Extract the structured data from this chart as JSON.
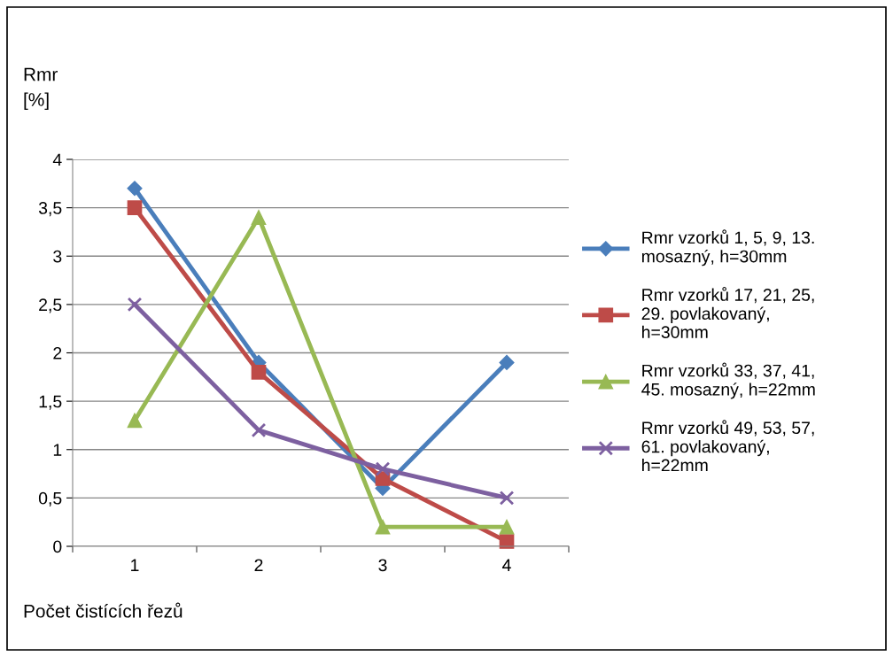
{
  "chart_data": {
    "type": "line",
    "ylabel": "Rmr\n[%]",
    "xlabel": "Počet čistících řezů",
    "categories": [
      "1",
      "2",
      "3",
      "4"
    ],
    "series": [
      {
        "name": "Rmr vzorků 1, 5, 9, 13.\nmosazný, h=30mm",
        "color": "#4a7ebb",
        "marker": "diamond",
        "values": [
          3.7,
          1.9,
          0.6,
          1.9
        ]
      },
      {
        "name": "Rmr vzorků 17, 21, 25,\n29. povlakovaný,\nh=30mm",
        "color": "#be4b48",
        "marker": "square",
        "values": [
          3.5,
          1.8,
          0.7,
          0.05
        ]
      },
      {
        "name": "Rmr vzorků 33, 37, 41,\n45. mosazný, h=22mm",
        "color": "#98b954",
        "marker": "triangle",
        "values": [
          1.3,
          3.4,
          0.2,
          0.2
        ]
      },
      {
        "name": "Rmr vzorků 49, 53, 57,\n61. povlakovaný,\nh=22mm",
        "color": "#7d60a0",
        "marker": "cross",
        "values": [
          2.5,
          1.2,
          0.8,
          0.5
        ]
      }
    ],
    "ylim": [
      0,
      4
    ],
    "yticks": [
      0,
      {
        "value": 0.5,
        "label": "0,5"
      },
      1,
      {
        "value": 1.5,
        "label": "1,5"
      },
      2,
      {
        "value": 2.5,
        "label": "2,5"
      },
      3,
      {
        "value": 3.5,
        "label": "3,5"
      },
      4
    ],
    "grid": "y",
    "legend": "right",
    "line_style": "solid"
  }
}
